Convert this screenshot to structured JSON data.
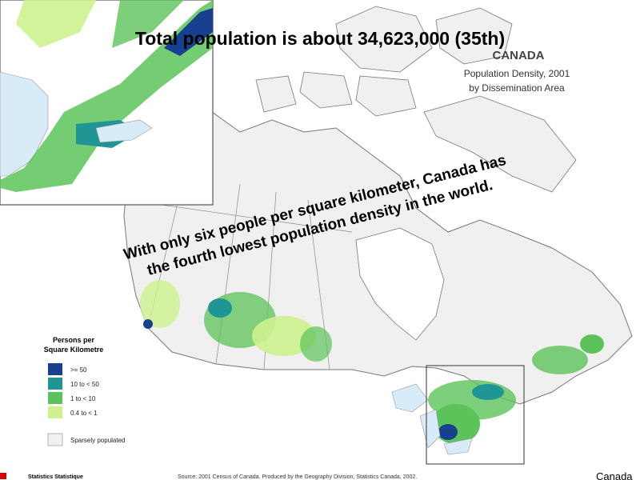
{
  "title": "Total population is about 34,623,000 (35th)",
  "map_title": {
    "country": "CANADA",
    "line1": "Population Density, 2001",
    "line2": "by Dissemination Area"
  },
  "callout": {
    "line1": "With only six people per square kilometer, Canada has",
    "line2": "the fourth lowest population density in the world."
  },
  "legend": {
    "title_line1": "Persons per",
    "title_line2": "Square Kilometre",
    "items": [
      {
        "label": ">= 50",
        "color": "#17418f"
      },
      {
        "label": "10 to < 50",
        "color": "#1f9596"
      },
      {
        "label": "1 to < 10",
        "color": "#5cc35a"
      },
      {
        "label": "0.4 to < 1",
        "color": "#cdf28f"
      },
      {
        "label": "Sparsely populated",
        "color": "#f0f0f0"
      }
    ]
  },
  "footer": {
    "agency": "Statistics  Statistique",
    "source": "Source:  2001 Census of Canada.  Produced by the Geography Division, Statistics Canada, 2002.",
    "wordmark": "Canada"
  }
}
